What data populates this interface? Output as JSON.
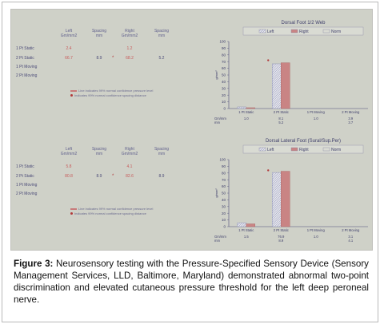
{
  "panels": [
    {
      "table": {
        "headers": [
          "Left\nGm/mm2",
          "Spacing\nmm",
          "Right\nGm/mm2",
          "Spacing\nmm"
        ],
        "rows": [
          {
            "label": "1 Pt Static",
            "left": "2.4",
            "lspacing": "",
            "right": "1.2",
            "rspacing": "",
            "mark": ""
          },
          {
            "label": "2 Pt Static",
            "left": "66.7",
            "lspacing": "8.9",
            "right": "68.2",
            "rspacing": "5.2",
            "mark": "*"
          },
          {
            "label": "1 Pt Moving",
            "left": "",
            "lspacing": "",
            "right": "",
            "rspacing": "",
            "mark": ""
          },
          {
            "label": "2 Pt Moving",
            "left": "",
            "lspacing": "",
            "right": "",
            "rspacing": "",
            "mark": ""
          }
        ],
        "legend": [
          "Line indicates 99% normal confidence pressure level",
          "Indicates 99% normal confidence spacing distance"
        ]
      },
      "chart_data": {
        "type": "bar",
        "title": "Dorsal Foot 1/2 Web",
        "legend": [
          "Left",
          "Right",
          "Norm"
        ],
        "legend_placement": "top",
        "ylabel": "g/mm²",
        "ylim": [
          0,
          100
        ],
        "yticks": [
          0,
          10,
          20,
          30,
          40,
          50,
          60,
          70,
          80,
          90,
          100
        ],
        "categories": [
          "1 Pt Static",
          "2 Pt Static",
          "1 Pt Moving",
          "2 Pt Moving"
        ],
        "series": [
          {
            "name": "Left",
            "values": [
              2.4,
              66.7,
              0,
              0
            ]
          },
          {
            "name": "Right",
            "values": [
              1.2,
              68.2,
              0,
              0
            ]
          }
        ],
        "norm_marker": {
          "category": "2 Pt Static",
          "value": 72
        },
        "row_labels": [
          "Gm/mm",
          "mm"
        ],
        "row_values": [
          [
            "1.0",
            "8.1",
            "1.0",
            "3.9"
          ],
          [
            "",
            "5.2",
            "",
            "3.7"
          ]
        ],
        "colors": {
          "left": "#8e93b5",
          "right": "#c98484",
          "norm_marker": "#b23a3a",
          "axis": "#4b4b78"
        }
      }
    },
    {
      "table": {
        "headers": [
          "Left\nGm/mm2",
          "Spacing\nmm",
          "Right\nGm/mm2",
          "Spacing\nmm"
        ],
        "rows": [
          {
            "label": "1 Pt Static",
            "left": "5.8",
            "lspacing": "",
            "right": "4.1",
            "rspacing": "",
            "mark": ""
          },
          {
            "label": "2 Pt Static",
            "left": "80.8",
            "lspacing": "8.9",
            "right": "82.6",
            "rspacing": "8.9",
            "mark": "*"
          },
          {
            "label": "1 Pt Moving",
            "left": "",
            "lspacing": "",
            "right": "",
            "rspacing": "",
            "mark": ""
          },
          {
            "label": "2 Pt Moving",
            "left": "",
            "lspacing": "",
            "right": "",
            "rspacing": "",
            "mark": ""
          }
        ],
        "legend": [
          "Line indicates 99% normal confidence pressure level",
          "Indicates 99% normal confidence spacing distance"
        ]
      },
      "chart_data": {
        "type": "bar",
        "title": "Dorsal Lateral Foot (Sural/Sup.Per)",
        "legend": [
          "Left",
          "Right",
          "Norm"
        ],
        "legend_placement": "top",
        "ylabel": "g/mm²",
        "ylim": [
          0,
          100
        ],
        "yticks": [
          0,
          10,
          20,
          30,
          40,
          50,
          60,
          70,
          80,
          90,
          100
        ],
        "categories": [
          "1 Pt Static",
          "2 Pt Static",
          "1 Pt Moving",
          "2 Pt Moving"
        ],
        "series": [
          {
            "name": "Left",
            "values": [
              5.8,
              80.8,
              0,
              0
            ]
          },
          {
            "name": "Right",
            "values": [
              4.1,
              82.6,
              0,
              0
            ]
          }
        ],
        "norm_marker": {
          "category": "2 Pt Static",
          "value": 84
        },
        "row_labels": [
          "Gm/mm",
          "mm"
        ],
        "row_values": [
          [
            "1.5",
            "76.9",
            "1.0",
            "3.1"
          ],
          [
            "",
            "8.9",
            "",
            "4.1"
          ]
        ],
        "colors": {
          "left": "#8e93b5",
          "right": "#c98484",
          "norm_marker": "#b23a3a",
          "axis": "#4b4b78"
        }
      }
    }
  ],
  "caption": {
    "label": "Figure 3:",
    "text": " Neurosensory testing with the Pressure-Specified Sensory Device (Sensory Management Services, LLD, Baltimore, Maryland) demonstrated abnormal two-point discrimination and elevated cutaneous pressure threshold for the left deep peroneal nerve."
  }
}
